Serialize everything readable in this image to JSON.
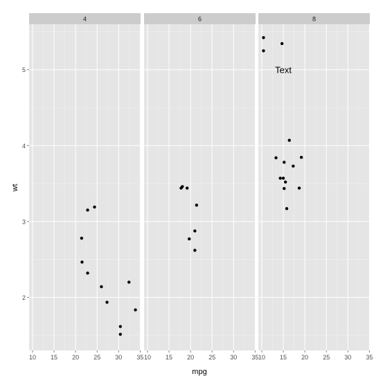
{
  "chart_data": {
    "type": "scatter",
    "title": "",
    "xlabel": "mpg",
    "ylabel": "wt",
    "xlim": [
      9.2,
      35.1
    ],
    "ylim": [
      1.3,
      5.6
    ],
    "x_ticks": [
      10,
      15,
      20,
      25,
      30,
      35
    ],
    "y_ticks": [
      2,
      3,
      4,
      5
    ],
    "grid": true,
    "facets": [
      {
        "label": "4",
        "points": [
          {
            "x": 22.8,
            "y": 2.32
          },
          {
            "x": 24.4,
            "y": 3.19
          },
          {
            "x": 22.8,
            "y": 3.15
          },
          {
            "x": 32.4,
            "y": 2.2
          },
          {
            "x": 30.4,
            "y": 1.615
          },
          {
            "x": 33.9,
            "y": 1.835
          },
          {
            "x": 21.5,
            "y": 2.465
          },
          {
            "x": 27.3,
            "y": 1.935
          },
          {
            "x": 26.0,
            "y": 2.14
          },
          {
            "x": 30.4,
            "y": 1.513
          },
          {
            "x": 21.4,
            "y": 2.78
          }
        ],
        "annotations": []
      },
      {
        "label": "6",
        "points": [
          {
            "x": 21.0,
            "y": 2.62
          },
          {
            "x": 21.0,
            "y": 2.875
          },
          {
            "x": 21.4,
            "y": 3.215
          },
          {
            "x": 18.1,
            "y": 3.46
          },
          {
            "x": 19.2,
            "y": 3.44
          },
          {
            "x": 17.8,
            "y": 3.44
          },
          {
            "x": 19.7,
            "y": 2.77
          }
        ],
        "annotations": []
      },
      {
        "label": "8",
        "points": [
          {
            "x": 18.7,
            "y": 3.44
          },
          {
            "x": 14.3,
            "y": 3.57
          },
          {
            "x": 16.4,
            "y": 4.07
          },
          {
            "x": 17.3,
            "y": 3.73
          },
          {
            "x": 15.2,
            "y": 3.78
          },
          {
            "x": 10.4,
            "y": 5.25
          },
          {
            "x": 10.4,
            "y": 5.424
          },
          {
            "x": 14.7,
            "y": 5.345
          },
          {
            "x": 15.5,
            "y": 3.52
          },
          {
            "x": 15.2,
            "y": 3.435
          },
          {
            "x": 13.3,
            "y": 3.84
          },
          {
            "x": 19.2,
            "y": 3.845
          },
          {
            "x": 15.8,
            "y": 3.17
          },
          {
            "x": 15.0,
            "y": 3.57
          }
        ],
        "annotations": [
          {
            "text": "Text",
            "x": 15,
            "y": 5
          }
        ]
      }
    ]
  }
}
